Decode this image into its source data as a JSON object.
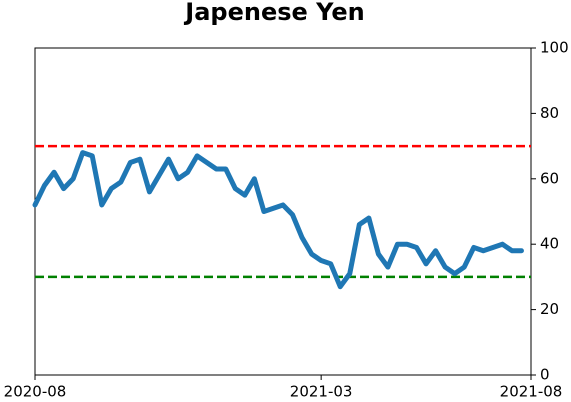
{
  "chart_data": {
    "type": "line",
    "title": "Japenese Yen",
    "categories": [
      "2020-08",
      null,
      null,
      null,
      null,
      null,
      null,
      null,
      null,
      null,
      null,
      null,
      null,
      null,
      null,
      null,
      null,
      null,
      null,
      null,
      null,
      null,
      null,
      null,
      null,
      null,
      null,
      null,
      null,
      null,
      "2021-03",
      null,
      null,
      null,
      null,
      null,
      null,
      null,
      null,
      null,
      null,
      null,
      null,
      null,
      null,
      null,
      null,
      null,
      null,
      null,
      null,
      null,
      "2021-08"
    ],
    "series": [
      {
        "color": "#1f77b4",
        "values": [
          52,
          58,
          62,
          57,
          60,
          68,
          67,
          52,
          57,
          59,
          65,
          66,
          56,
          61,
          66,
          60,
          62,
          67,
          65,
          63,
          63,
          57,
          55,
          60,
          50,
          51,
          52,
          49,
          42,
          37,
          35,
          34,
          27,
          31,
          46,
          48,
          37,
          33,
          40,
          40,
          39,
          34,
          38,
          33,
          31,
          33,
          39,
          38,
          39,
          40,
          38,
          38,
          null
        ]
      }
    ],
    "hlines": [
      {
        "value": 70,
        "color": "#ff0000"
      },
      {
        "value": 30,
        "color": "#008000"
      }
    ],
    "ylim": [
      0,
      100
    ],
    "yticks": [
      0,
      20,
      40,
      60,
      80,
      100
    ],
    "y_axis_side": "right"
  }
}
